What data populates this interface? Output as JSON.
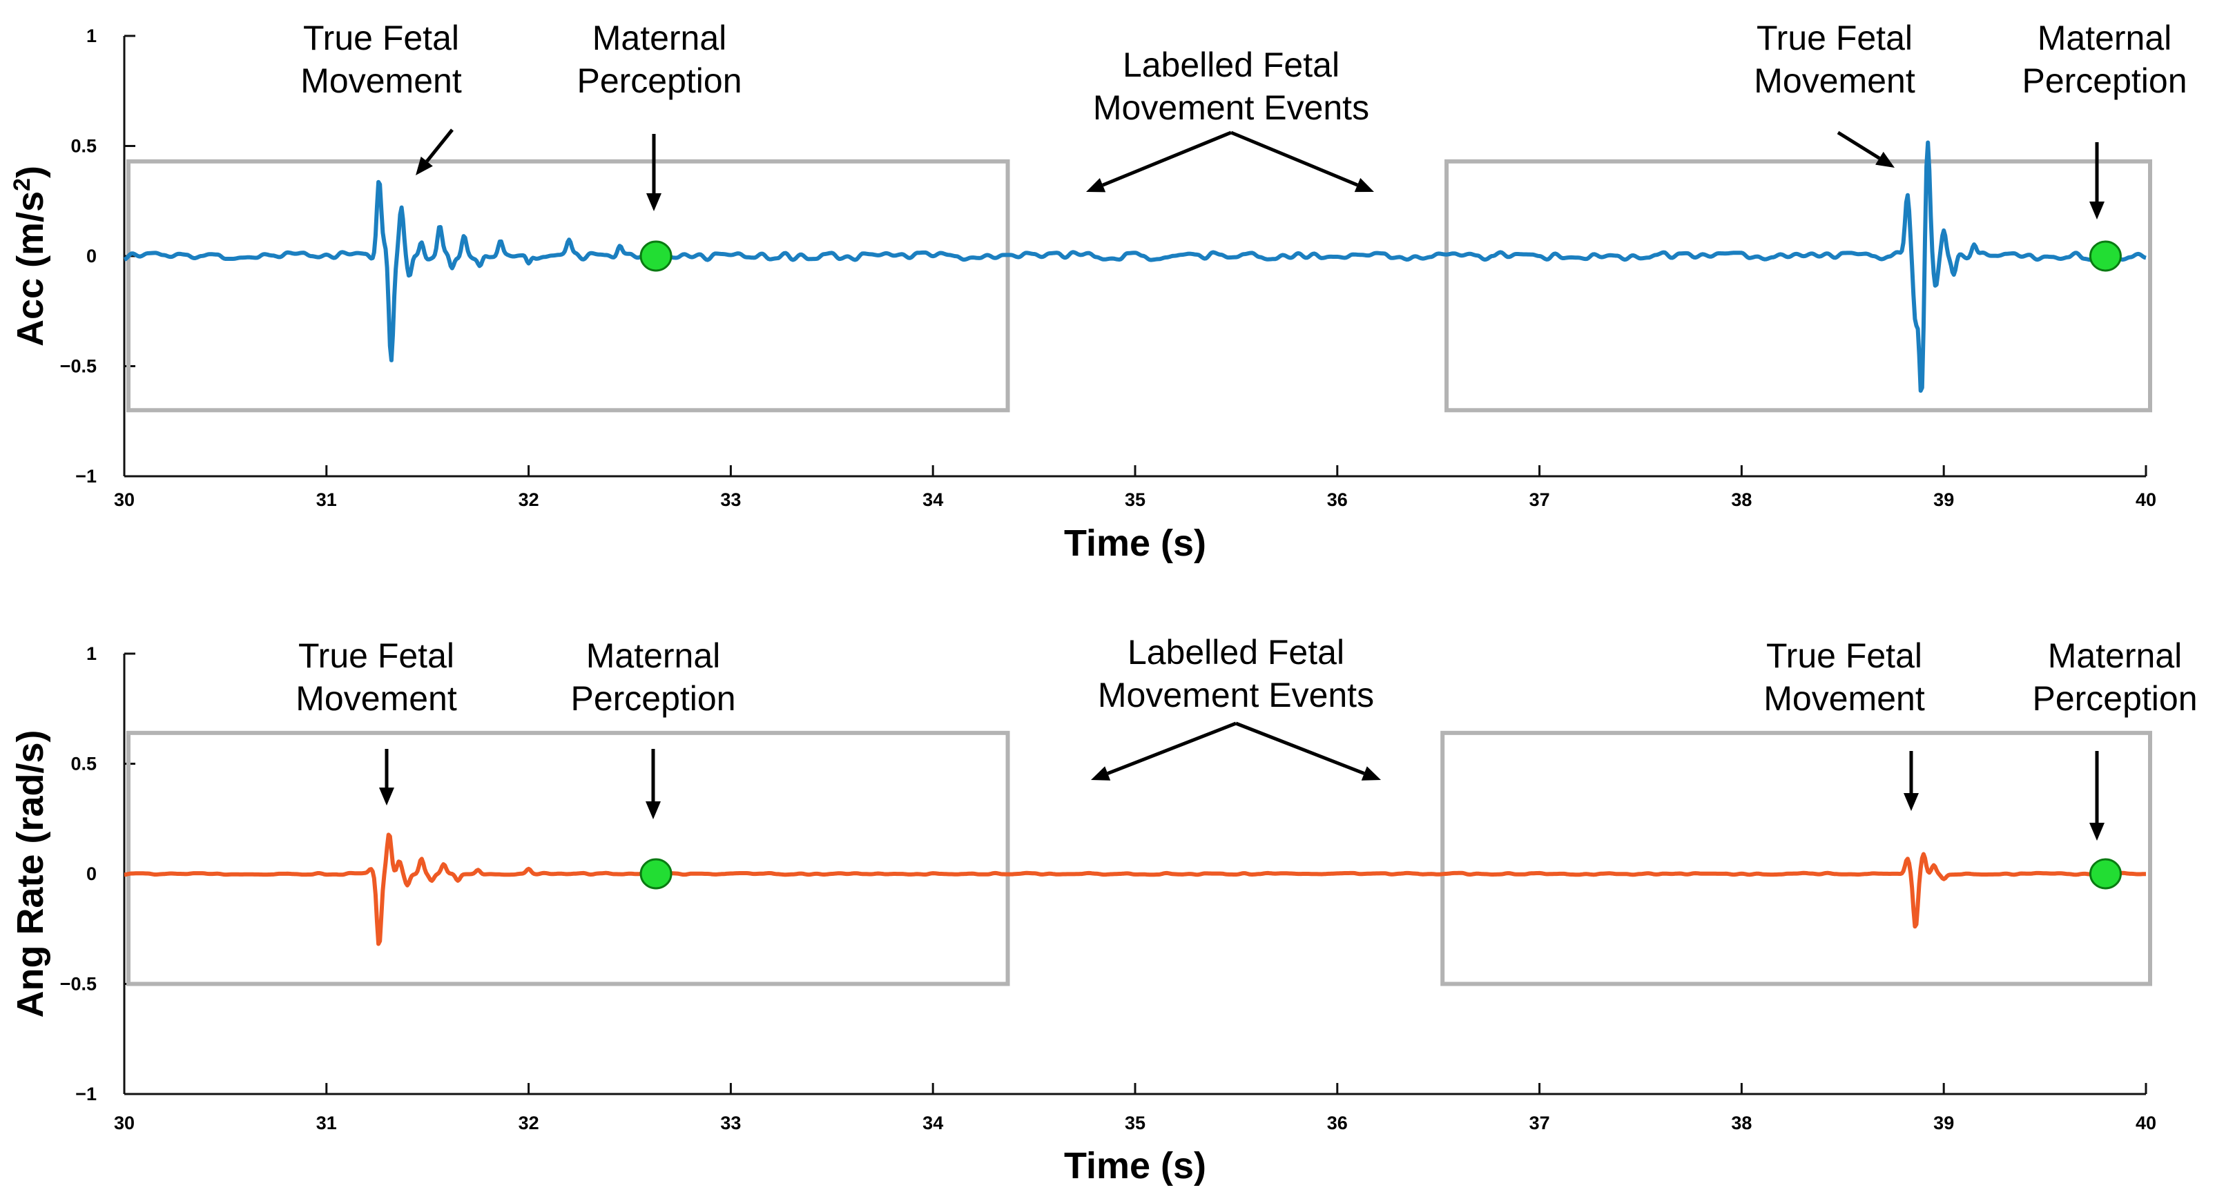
{
  "colors": {
    "acc_line": "#1b7fc0",
    "ang_line": "#ee5a24",
    "perception_marker": "#22dd33",
    "event_box": "#b3b3b3"
  },
  "chart_data": [
    {
      "type": "line",
      "id": "acc",
      "title": "",
      "xlabel": "Time (s)",
      "ylabel_main": "Acc (m/s",
      "ylabel_sup": "2",
      "ylabel_end": ")",
      "xlim": [
        30,
        40
      ],
      "ylim": [
        -1,
        1
      ],
      "xticks": [
        30,
        31,
        32,
        33,
        34,
        35,
        36,
        37,
        38,
        39,
        40
      ],
      "xtick_labels": [
        "30",
        "31",
        "32",
        "33",
        "34",
        "35",
        "36",
        "37",
        "38",
        "39",
        "40"
      ],
      "yticks": [
        1,
        0.5,
        0,
        -0.5,
        -1
      ],
      "ytick_labels": [
        "1",
        "0.5",
        "0",
        "−0.5",
        "−1"
      ],
      "series": [
        {
          "name": "Acceleration",
          "color": "#1b7fc0",
          "noise_amplitude": 0.018,
          "bursts": [
            {
              "peaks": [
                [
                  31.26,
                  0.36
                ],
                [
                  31.29,
                  0.05
                ],
                [
                  31.32,
                  -0.48
                ],
                [
                  31.37,
                  0.22
                ],
                [
                  31.41,
                  -0.1
                ],
                [
                  31.47,
                  0.07
                ],
                [
                  31.56,
                  0.13
                ],
                [
                  31.62,
                  -0.07
                ],
                [
                  31.68,
                  0.09
                ],
                [
                  31.76,
                  -0.05
                ],
                [
                  31.86,
                  0.07
                ],
                [
                  32.0,
                  -0.05
                ],
                [
                  32.2,
                  0.06
                ],
                [
                  32.45,
                  0.04
                ]
              ]
            },
            {
              "peaks": [
                [
                  38.82,
                  0.27
                ],
                [
                  38.86,
                  -0.3
                ],
                [
                  38.89,
                  -0.63
                ],
                [
                  38.92,
                  0.53
                ],
                [
                  38.96,
                  -0.15
                ],
                [
                  39.0,
                  0.13
                ],
                [
                  39.05,
                  -0.08
                ],
                [
                  39.15,
                  0.05
                ]
              ]
            }
          ]
        }
      ],
      "event_boxes": [
        {
          "x": [
            30,
            34.37
          ],
          "y": [
            -0.7,
            0.43
          ]
        },
        {
          "x": [
            36.52,
            40
          ],
          "y": [
            -0.7,
            0.43
          ]
        }
      ],
      "perception_points": [
        {
          "x": 32.63,
          "y": 0
        },
        {
          "x": 39.8,
          "y": 0
        }
      ],
      "annotations": [
        {
          "id": "acc-fetal-1",
          "lines": [
            "True Fetal",
            "Movement"
          ]
        },
        {
          "id": "acc-maternal-1",
          "lines": [
            "Maternal",
            "Perception"
          ]
        },
        {
          "id": "acc-labelled",
          "lines": [
            "Labelled Fetal",
            "Movement Events"
          ]
        },
        {
          "id": "acc-fetal-2",
          "lines": [
            "True Fetal",
            "Movement"
          ]
        },
        {
          "id": "acc-maternal-2",
          "lines": [
            "Maternal",
            "Perception"
          ]
        }
      ]
    },
    {
      "type": "line",
      "id": "ang",
      "title": "",
      "xlabel": "Time (s)",
      "ylabel": "Ang Rate (rad/s)",
      "xlim": [
        30,
        40
      ],
      "ylim": [
        -1,
        1
      ],
      "xticks": [
        30,
        31,
        32,
        33,
        34,
        35,
        36,
        37,
        38,
        39,
        40
      ],
      "xtick_labels": [
        "30",
        "31",
        "32",
        "33",
        "34",
        "35",
        "36",
        "37",
        "38",
        "39",
        "40"
      ],
      "yticks": [
        1,
        0.5,
        0,
        -0.5,
        -1
      ],
      "ytick_labels": [
        "1",
        "0.5",
        "0",
        "−0.5",
        "−1"
      ],
      "series": [
        {
          "name": "Angular Rate",
          "color": "#ee5a24",
          "noise_amplitude": 0.004,
          "bursts": [
            {
              "peaks": [
                [
                  31.22,
                  0.02
                ],
                [
                  31.26,
                  -0.33
                ],
                [
                  31.31,
                  0.18
                ],
                [
                  31.36,
                  0.06
                ],
                [
                  31.4,
                  -0.05
                ],
                [
                  31.47,
                  0.07
                ],
                [
                  31.52,
                  -0.03
                ],
                [
                  31.58,
                  0.04
                ],
                [
                  31.65,
                  -0.03
                ],
                [
                  31.75,
                  0.02
                ],
                [
                  32.0,
                  0.02
                ]
              ]
            },
            {
              "peaks": [
                [
                  38.82,
                  0.07
                ],
                [
                  38.86,
                  -0.25
                ],
                [
                  38.9,
                  0.09
                ],
                [
                  38.95,
                  0.04
                ],
                [
                  39.0,
                  -0.02
                ]
              ]
            }
          ]
        }
      ],
      "event_boxes": [
        {
          "x": [
            30,
            34.37
          ],
          "y": [
            -0.5,
            0.64
          ]
        },
        {
          "x": [
            36.5,
            40
          ],
          "y": [
            -0.5,
            0.64
          ]
        }
      ],
      "perception_points": [
        {
          "x": 32.63,
          "y": 0
        },
        {
          "x": 39.8,
          "y": 0
        }
      ],
      "annotations": [
        {
          "id": "ang-fetal-1",
          "lines": [
            "True Fetal",
            "Movement"
          ]
        },
        {
          "id": "ang-maternal-1",
          "lines": [
            "Maternal",
            "Perception"
          ]
        },
        {
          "id": "ang-labelled",
          "lines": [
            "Labelled Fetal",
            "Movement Events"
          ]
        },
        {
          "id": "ang-fetal-2",
          "lines": [
            "True Fetal",
            "Movement"
          ]
        },
        {
          "id": "ang-maternal-2",
          "lines": [
            "Maternal",
            "Perception"
          ]
        }
      ]
    }
  ]
}
